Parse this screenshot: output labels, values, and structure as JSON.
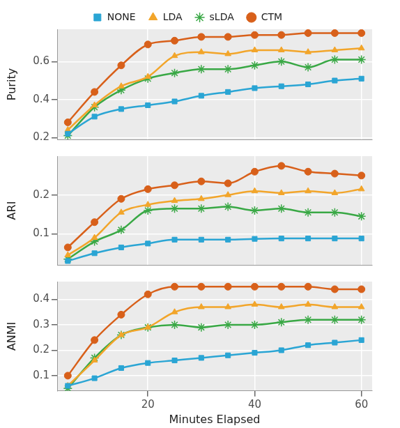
{
  "chart_data": [
    {
      "type": "line",
      "y_label": "Purity",
      "legend": "top",
      "grid": true,
      "tick_labels": "y",
      "xlim": [
        3,
        62
      ],
      "xticks": [
        20,
        40,
        60
      ],
      "ylim": [
        0.19,
        0.77
      ],
      "yticks": [
        0.2,
        0.4,
        0.6
      ],
      "series": [
        {
          "name": "NONE",
          "color": "#2aa5d4",
          "marker": "square",
          "values": [
            0.22,
            0.31,
            0.35,
            0.37,
            0.39,
            0.42,
            0.44,
            0.46,
            0.47,
            0.48,
            0.5,
            0.51
          ]
        },
        {
          "name": "LDA",
          "color": "#f2a52a",
          "marker": "triangle",
          "values": [
            0.24,
            0.37,
            0.47,
            0.52,
            0.63,
            0.65,
            0.64,
            0.66,
            0.66,
            0.65,
            0.66,
            0.67
          ]
        },
        {
          "name": "sLDA",
          "color": "#39a845",
          "marker": "star",
          "values": [
            0.21,
            0.36,
            0.45,
            0.51,
            0.54,
            0.56,
            0.56,
            0.58,
            0.6,
            0.57,
            0.61,
            0.61
          ]
        },
        {
          "name": "CTM",
          "color": "#d8601a",
          "marker": "circle",
          "values": [
            0.28,
            0.44,
            0.58,
            0.69,
            0.71,
            0.73,
            0.73,
            0.74,
            0.74,
            0.75,
            0.75,
            0.75
          ]
        }
      ],
      "x": [
        5,
        10,
        15,
        20,
        25,
        30,
        35,
        40,
        45,
        50,
        55,
        60
      ]
    },
    {
      "type": "line",
      "y_label": "ARI",
      "grid": true,
      "tick_labels": "y",
      "xlim": [
        3,
        62
      ],
      "xticks": [
        20,
        40,
        60
      ],
      "ylim": [
        0.02,
        0.3
      ],
      "yticks": [
        0.1,
        0.2
      ],
      "series": [
        {
          "name": "NONE",
          "color": "#2aa5d4",
          "marker": "square",
          "values": [
            0.03,
            0.05,
            0.065,
            0.075,
            0.085,
            0.085,
            0.085,
            0.087,
            0.088,
            0.088,
            0.088,
            0.088
          ]
        },
        {
          "name": "LDA",
          "color": "#f2a52a",
          "marker": "triangle",
          "values": [
            0.045,
            0.09,
            0.155,
            0.175,
            0.185,
            0.19,
            0.2,
            0.21,
            0.205,
            0.21,
            0.205,
            0.215
          ]
        },
        {
          "name": "sLDA",
          "color": "#39a845",
          "marker": "star",
          "values": [
            0.035,
            0.08,
            0.11,
            0.16,
            0.165,
            0.165,
            0.17,
            0.16,
            0.165,
            0.155,
            0.155,
            0.145
          ]
        },
        {
          "name": "CTM",
          "color": "#d8601a",
          "marker": "circle",
          "values": [
            0.065,
            0.13,
            0.19,
            0.215,
            0.225,
            0.235,
            0.23,
            0.26,
            0.275,
            0.26,
            0.255,
            0.25
          ]
        }
      ],
      "x": [
        5,
        10,
        15,
        20,
        25,
        30,
        35,
        40,
        45,
        50,
        55,
        60
      ]
    },
    {
      "type": "line",
      "y_label": "ANMI",
      "x_label": "Minutes Elapsed",
      "grid": true,
      "xlim": [
        3,
        62
      ],
      "xticks": [
        20,
        40,
        60
      ],
      "ylim": [
        0.04,
        0.47
      ],
      "yticks": [
        0.1,
        0.2,
        0.3,
        0.4
      ],
      "series": [
        {
          "name": "NONE",
          "color": "#2aa5d4",
          "marker": "square",
          "values": [
            0.06,
            0.09,
            0.13,
            0.15,
            0.16,
            0.17,
            0.18,
            0.19,
            0.2,
            0.22,
            0.23,
            0.24
          ]
        },
        {
          "name": "LDA",
          "color": "#f2a52a",
          "marker": "triangle",
          "values": [
            0.06,
            0.16,
            0.26,
            0.29,
            0.35,
            0.37,
            0.37,
            0.38,
            0.37,
            0.38,
            0.37,
            0.37
          ]
        },
        {
          "name": "sLDA",
          "color": "#39a845",
          "marker": "star",
          "values": [
            0.05,
            0.17,
            0.26,
            0.29,
            0.3,
            0.29,
            0.3,
            0.3,
            0.31,
            0.32,
            0.32,
            0.32
          ]
        },
        {
          "name": "CTM",
          "color": "#d8601a",
          "marker": "circle",
          "values": [
            0.1,
            0.24,
            0.34,
            0.42,
            0.45,
            0.45,
            0.45,
            0.45,
            0.45,
            0.45,
            0.44,
            0.44
          ]
        }
      ],
      "x": [
        5,
        10,
        15,
        20,
        25,
        30,
        35,
        40,
        45,
        50,
        55,
        60
      ]
    }
  ]
}
